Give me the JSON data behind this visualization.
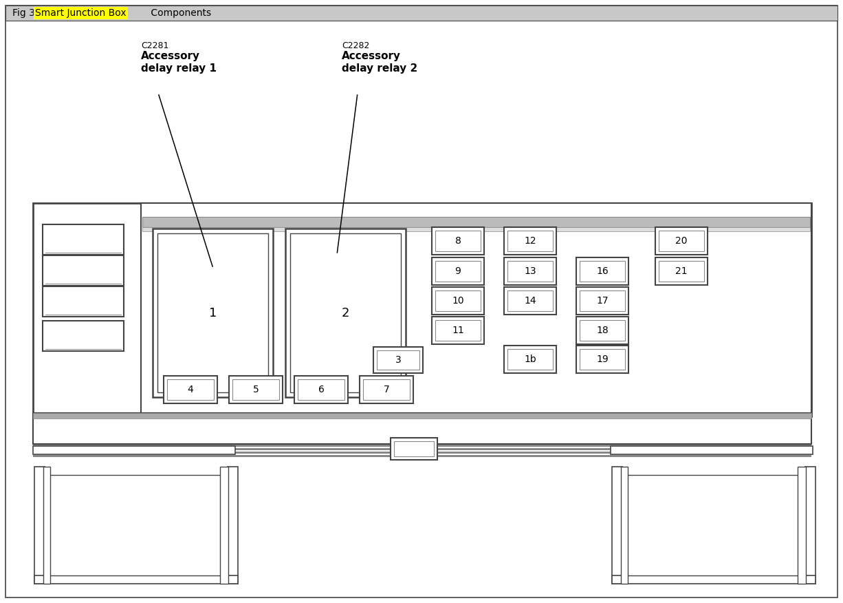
{
  "title_prefix": "Fig 3: ",
  "title_highlight": "Smart Junction Box",
  "title_suffix": " Components",
  "title_highlight_color": "#FFFF00",
  "bg_color": "#FFFFFF",
  "header_bg": "#CCCCCC",
  "border_color": "#444444",
  "border_color_light": "#888888",
  "label1_code": "C2281",
  "label1_bold": "Accessory\ndelay relay 1",
  "label2_code": "C2282",
  "label2_bold": "Accessory\ndelay relay 2",
  "fig_width": 12.26,
  "fig_height": 8.76,
  "dpi": 100
}
